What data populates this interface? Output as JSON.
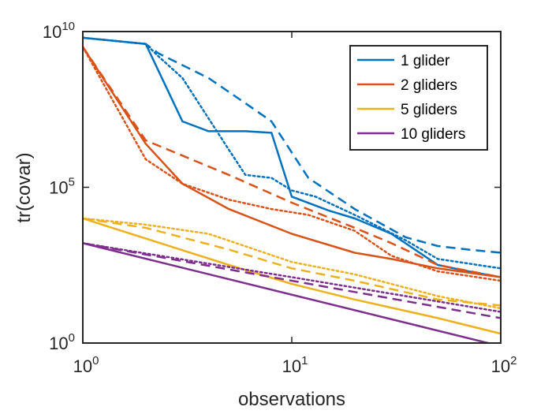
{
  "chart_data": {
    "type": "line",
    "title": "",
    "xlabel": "observations",
    "ylabel": "tr(covar)",
    "xscale": "log",
    "yscale": "log",
    "xlim": [
      1,
      100
    ],
    "ylim": [
      1,
      10000000000
    ],
    "x_ticks": [
      {
        "value": 1,
        "base": "10",
        "exp": "0"
      },
      {
        "value": 10,
        "base": "10",
        "exp": "1"
      },
      {
        "value": 100,
        "base": "10",
        "exp": "2"
      }
    ],
    "y_ticks": [
      {
        "value": 1,
        "base": "10",
        "exp": "0"
      },
      {
        "value": 100000,
        "base": "10",
        "exp": "5"
      },
      {
        "value": 10000000000,
        "base": "10",
        "exp": "10"
      }
    ],
    "legend_position": "top-right",
    "legend": [
      "1 glider",
      "2 gliders",
      "5 gliders",
      "10 gliders"
    ],
    "colors": [
      "#0072BD",
      "#D95319",
      "#EDB120",
      "#7E2F8E"
    ],
    "series": [
      {
        "name": "1 glider",
        "group": 0,
        "style": "solid",
        "x": [
          1,
          2,
          3,
          4,
          5,
          6,
          8,
          10,
          15,
          20,
          30,
          50,
          70,
          100
        ],
        "y": [
          6300000000.0,
          4000000000.0,
          13000000.0,
          6300000.0,
          6300000.0,
          6300000.0,
          5600000.0,
          50000.0,
          18000.0,
          10000.0,
          3200.0,
          320.0,
          200.0,
          130.0
        ]
      },
      {
        "name": "1 glider",
        "group": 0,
        "style": "dashed",
        "x": [
          1,
          2,
          2.3,
          4,
          6,
          8,
          12,
          20,
          35,
          50,
          70,
          100
        ],
        "y": [
          6300000000.0,
          4000000000.0,
          2000000000.0,
          320000000.0,
          50000000.0,
          13000000.0,
          200000.0,
          20000.0,
          2500.0,
          1300.0,
          1000.0,
          790.0
        ]
      },
      {
        "name": "1 glider",
        "group": 0,
        "style": "dotted",
        "x": [
          1,
          2,
          2.3,
          3,
          5,
          6,
          8,
          10,
          13,
          20,
          35,
          50,
          100
        ],
        "y": [
          6300000000.0,
          4000000000.0,
          1600000000.0,
          320000000.0,
          1600000.0,
          250000.0,
          200000.0,
          79000.0,
          50000.0,
          13000.0,
          2000.0,
          500.0,
          250.0
        ]
      },
      {
        "name": "2 gliders",
        "group": 1,
        "style": "solid",
        "x": [
          1,
          2,
          3,
          5,
          10,
          20,
          30,
          50,
          100
        ],
        "y": [
          3200000000.0,
          2500000.0,
          130000.0,
          20000.0,
          3200.0,
          790.0,
          500.0,
          250.0,
          130.0
        ]
      },
      {
        "name": "2 gliders",
        "group": 1,
        "style": "dashed",
        "x": [
          1,
          2,
          5,
          10,
          20,
          30,
          50,
          100
        ],
        "y": [
          3200000000.0,
          3200000.0,
          250000.0,
          32000.0,
          5000.0,
          1600.0,
          320.0,
          130.0
        ]
      },
      {
        "name": "2 gliders",
        "group": 1,
        "style": "dotted",
        "x": [
          1,
          2,
          3,
          5,
          8,
          12,
          20,
          30,
          50,
          100
        ],
        "y": [
          3200000000.0,
          790000.0,
          130000.0,
          40000.0,
          20000.0,
          13000.0,
          4000.0,
          630.0,
          200.0,
          100.0
        ]
      },
      {
        "name": "5 gliders",
        "group": 2,
        "style": "solid",
        "x": [
          1,
          5,
          10,
          20,
          50,
          100
        ],
        "y": [
          10000.0,
          320.0,
          79.0,
          25.0,
          6.3,
          2.0
        ]
      },
      {
        "name": "5 gliders",
        "group": 2,
        "style": "dashed",
        "x": [
          1,
          2,
          5,
          10,
          20,
          50,
          100
        ],
        "y": [
          10000.0,
          5000.0,
          1000.0,
          250.0,
          100.0,
          25.0,
          16.0
        ]
      },
      {
        "name": "5 gliders",
        "group": 2,
        "style": "dotted",
        "x": [
          1,
          2,
          4,
          10,
          20,
          50,
          100
        ],
        "y": [
          10000.0,
          6300.0,
          3200.0,
          400.0,
          160.0,
          32.0,
          13.0
        ]
      },
      {
        "name": "10 gliders",
        "group": 3,
        "style": "solid",
        "x": [
          1,
          100
        ],
        "y": [
          1600.0,
          0.79
        ]
      },
      {
        "name": "10 gliders",
        "group": 3,
        "style": "dashed",
        "x": [
          1,
          10,
          100
        ],
        "y": [
          1600.0,
          100.0,
          6.3
        ]
      },
      {
        "name": "10 gliders",
        "group": 3,
        "style": "dotted",
        "x": [
          1,
          10,
          100
        ],
        "y": [
          1600.0,
          130.0,
          10.0
        ]
      }
    ]
  }
}
